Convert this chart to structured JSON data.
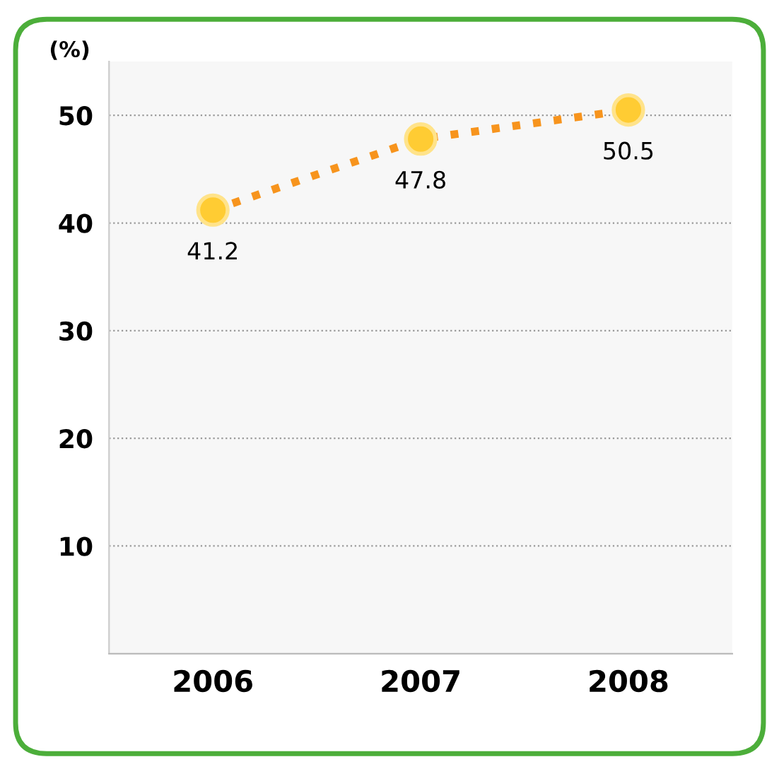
{
  "chart_data": {
    "type": "line",
    "ylabel": "(%)",
    "categories": [
      "2006",
      "2007",
      "2008"
    ],
    "series": [
      {
        "color": "#f7941d",
        "values": [
          41.2,
          47.8,
          50.5
        ]
      }
    ],
    "ylim": [
      0,
      55
    ],
    "yticks": [
      10,
      20,
      30,
      40,
      50
    ],
    "grid": "y",
    "marker": "circle",
    "line_style": "dotted",
    "data_labels": true,
    "legend": false
  }
}
